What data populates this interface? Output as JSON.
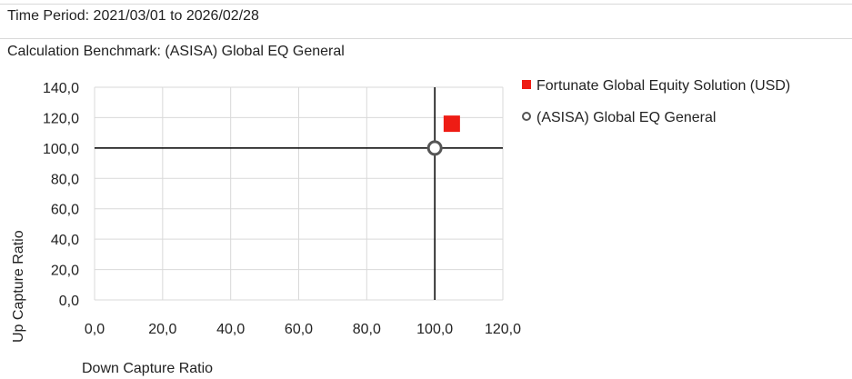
{
  "header": {
    "time_period": "Time Period: 2021/03/01 to 2026/02/28",
    "benchmark": "Calculation Benchmark: (ASISA) Global EQ General"
  },
  "colors": {
    "fund": "#ee1c14",
    "benchmark_marker": "#555555",
    "gridline": "#d9d9d9",
    "crosshair": "#000000"
  },
  "chart_data": {
    "type": "scatter",
    "xlabel": "Down Capture Ratio",
    "ylabel": "Up Capture Ratio",
    "xlim": [
      0,
      120
    ],
    "ylim": [
      0,
      140
    ],
    "x_ticks": [
      "0,0",
      "20,0",
      "40,0",
      "60,0",
      "80,0",
      "100,0",
      "120,0"
    ],
    "y_ticks": [
      "0,0",
      "20,0",
      "40,0",
      "60,0",
      "80,0",
      "100,0",
      "120,0",
      "140,0"
    ],
    "x_tick_values": [
      0,
      20,
      40,
      60,
      80,
      100,
      120
    ],
    "y_tick_values": [
      0,
      20,
      40,
      60,
      80,
      100,
      120,
      140
    ],
    "grid": true,
    "reference_lines": {
      "x": 100,
      "y": 100
    },
    "legend_position": "right",
    "series": [
      {
        "name": "Fortunate Global Equity Solution (USD)",
        "marker": "square",
        "color": "#ee1c14",
        "points": [
          {
            "x": 105.0,
            "y": 116.0
          }
        ]
      },
      {
        "name": "(ASISA) Global EQ General",
        "marker": "circle",
        "color": "#555555",
        "points": [
          {
            "x": 100.0,
            "y": 100.0
          }
        ]
      }
    ]
  }
}
